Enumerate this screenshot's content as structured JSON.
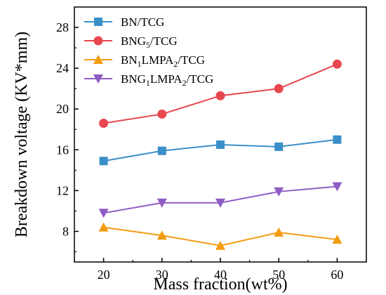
{
  "chart_data": {
    "type": "line",
    "x": [
      20,
      30,
      40,
      50,
      60
    ],
    "xlabel": "Mass fraction(wt%)",
    "ylabel": "Breakdown voltage (KV*mm)",
    "xlim": [
      15,
      65
    ],
    "ylim": [
      5,
      30
    ],
    "xticks": [
      20,
      30,
      40,
      50,
      60
    ],
    "yticks": [
      8,
      12,
      16,
      20,
      24,
      28
    ],
    "grid": false,
    "legend_position": "top-left",
    "series": [
      {
        "name": "BN/TCG",
        "name_parts": [
          [
            "BN/TCG",
            ""
          ]
        ],
        "marker": "square",
        "color": "#3a8fc9",
        "values": [
          14.9,
          15.9,
          16.5,
          16.3,
          17.0
        ]
      },
      {
        "name": "BNG5/TCG",
        "name_parts": [
          [
            "BNG",
            ""
          ],
          [
            "5",
            "sub"
          ],
          [
            "/TCG",
            ""
          ]
        ],
        "marker": "circle",
        "color": "#e8474f",
        "values": [
          18.6,
          19.5,
          21.3,
          22.0,
          24.4
        ]
      },
      {
        "name": "BN1LMPA2/TCG",
        "name_parts": [
          [
            "BN",
            ""
          ],
          [
            "1",
            "sub"
          ],
          [
            "LMPA",
            ""
          ],
          [
            "2",
            "sub"
          ],
          [
            "/TCG",
            ""
          ]
        ],
        "marker": "triangle-up",
        "color": "#f39c12",
        "values": [
          8.4,
          7.6,
          6.6,
          7.9,
          7.2
        ]
      },
      {
        "name": "BNG1LMPA2/TCG",
        "name_parts": [
          [
            "BNG",
            ""
          ],
          [
            "1",
            "sub"
          ],
          [
            "LMPA",
            ""
          ],
          [
            "2",
            "sub"
          ],
          [
            "/TCG",
            ""
          ]
        ],
        "marker": "triangle-down",
        "color": "#8e5cc4",
        "values": [
          9.8,
          10.8,
          10.8,
          11.9,
          12.4
        ]
      }
    ]
  }
}
